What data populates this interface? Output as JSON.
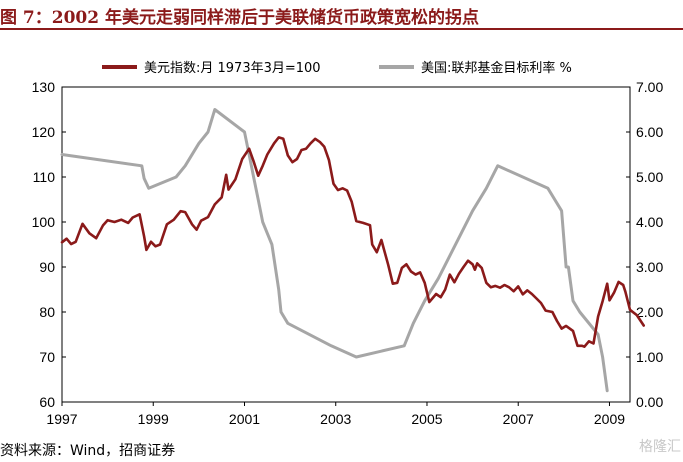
{
  "title": "图 7：2002 年美元走弱同样滞后于美联储货币政策宽松的拐点",
  "source": "资料来源：Wind，招商证券",
  "watermark": "格隆汇",
  "colors": {
    "title": "#8B1A1A",
    "series1": "#8B1A1A",
    "series2": "#A6A6A6"
  },
  "chart_data": {
    "type": "line",
    "x_axis": {
      "ticks": [
        "1997",
        "1999",
        "2001",
        "2003",
        "2005",
        "2007",
        "2009"
      ],
      "range": [
        1997,
        2009.45
      ]
    },
    "y_left": {
      "ticks": [
        "130",
        "120",
        "110",
        "100",
        "90",
        "80",
        "70",
        "60"
      ],
      "range": [
        60,
        130
      ]
    },
    "y_right": {
      "ticks": [
        "7.00",
        "6.00",
        "5.00",
        "4.00",
        "3.00",
        "2.00",
        "1.00",
        "0.00"
      ],
      "range": [
        0,
        7
      ]
    },
    "legend_position": "top",
    "series": [
      {
        "name": "美元指数:月 1973年3月=100",
        "axis": "left",
        "color": "#8B1A1A",
        "points": [
          [
            1997.0,
            95.5
          ],
          [
            1997.1,
            96.3
          ],
          [
            1997.2,
            95.1
          ],
          [
            1997.3,
            95.6
          ],
          [
            1997.45,
            99.6
          ],
          [
            1997.6,
            97.5
          ],
          [
            1997.75,
            96.4
          ],
          [
            1997.9,
            99.3
          ],
          [
            1998.0,
            100.4
          ],
          [
            1998.15,
            100.0
          ],
          [
            1998.3,
            100.5
          ],
          [
            1998.45,
            99.8
          ],
          [
            1998.55,
            101.0
          ],
          [
            1998.7,
            101.7
          ],
          [
            1998.8,
            96.8
          ],
          [
            1998.85,
            93.8
          ],
          [
            1998.95,
            95.6
          ],
          [
            1999.05,
            94.6
          ],
          [
            1999.15,
            95.0
          ],
          [
            1999.3,
            99.5
          ],
          [
            1999.45,
            100.5
          ],
          [
            1999.6,
            102.4
          ],
          [
            1999.7,
            102.2
          ],
          [
            1999.85,
            99.5
          ],
          [
            1999.95,
            98.3
          ],
          [
            2000.05,
            100.3
          ],
          [
            2000.2,
            101.1
          ],
          [
            2000.35,
            103.9
          ],
          [
            2000.5,
            105.5
          ],
          [
            2000.6,
            110.5
          ],
          [
            2000.65,
            107.2
          ],
          [
            2000.8,
            109.5
          ],
          [
            2000.95,
            114.0
          ],
          [
            2001.1,
            116.3
          ],
          [
            2001.2,
            113.5
          ],
          [
            2001.3,
            110.3
          ],
          [
            2001.4,
            112.5
          ],
          [
            2001.5,
            115.0
          ],
          [
            2001.65,
            117.5
          ],
          [
            2001.75,
            118.8
          ],
          [
            2001.85,
            118.5
          ],
          [
            2001.95,
            114.8
          ],
          [
            2002.05,
            113.3
          ],
          [
            2002.15,
            114.0
          ],
          [
            2002.25,
            116.0
          ],
          [
            2002.35,
            116.3
          ],
          [
            2002.45,
            117.5
          ],
          [
            2002.55,
            118.5
          ],
          [
            2002.65,
            117.8
          ],
          [
            2002.75,
            116.7
          ],
          [
            2002.85,
            113.8
          ],
          [
            2002.95,
            108.5
          ],
          [
            2003.05,
            107.1
          ],
          [
            2003.15,
            107.5
          ],
          [
            2003.25,
            107.0
          ],
          [
            2003.35,
            104.5
          ],
          [
            2003.45,
            100.2
          ],
          [
            2003.6,
            99.8
          ],
          [
            2003.75,
            99.3
          ],
          [
            2003.8,
            95.0
          ],
          [
            2003.9,
            93.3
          ],
          [
            2004.0,
            96.0
          ],
          [
            2004.05,
            94.2
          ],
          [
            2004.15,
            90.5
          ],
          [
            2004.25,
            86.3
          ],
          [
            2004.35,
            86.5
          ],
          [
            2004.45,
            89.8
          ],
          [
            2004.55,
            90.6
          ],
          [
            2004.65,
            89.0
          ],
          [
            2004.75,
            88.3
          ],
          [
            2004.85,
            88.8
          ],
          [
            2004.95,
            86.5
          ],
          [
            2005.05,
            82.2
          ],
          [
            2005.2,
            84.0
          ],
          [
            2005.3,
            83.3
          ],
          [
            2005.4,
            85.0
          ],
          [
            2005.5,
            88.3
          ],
          [
            2005.6,
            86.6
          ],
          [
            2005.7,
            88.5
          ],
          [
            2005.8,
            90.0
          ],
          [
            2005.9,
            91.4
          ],
          [
            2006.0,
            90.6
          ],
          [
            2006.05,
            89.4
          ],
          [
            2006.1,
            90.8
          ],
          [
            2006.2,
            89.8
          ],
          [
            2006.3,
            86.5
          ],
          [
            2006.4,
            85.5
          ],
          [
            2006.5,
            85.8
          ],
          [
            2006.6,
            85.4
          ],
          [
            2006.7,
            86.0
          ],
          [
            2006.8,
            85.5
          ],
          [
            2006.9,
            84.6
          ],
          [
            2007.0,
            85.7
          ],
          [
            2007.1,
            83.9
          ],
          [
            2007.2,
            84.8
          ],
          [
            2007.3,
            84.0
          ],
          [
            2007.4,
            83.0
          ],
          [
            2007.5,
            82.0
          ],
          [
            2007.6,
            80.3
          ],
          [
            2007.75,
            80.0
          ],
          [
            2007.85,
            78.0
          ],
          [
            2007.95,
            76.3
          ],
          [
            2008.05,
            76.9
          ],
          [
            2008.2,
            75.8
          ],
          [
            2008.3,
            72.5
          ],
          [
            2008.4,
            72.5
          ],
          [
            2008.45,
            72.3
          ],
          [
            2008.55,
            73.5
          ],
          [
            2008.65,
            73.0
          ],
          [
            2008.75,
            79.0
          ],
          [
            2008.85,
            82.4
          ],
          [
            2008.95,
            86.3
          ],
          [
            2009.0,
            82.6
          ],
          [
            2009.1,
            84.3
          ],
          [
            2009.2,
            86.7
          ],
          [
            2009.3,
            86.0
          ],
          [
            2009.35,
            84.5
          ],
          [
            2009.45,
            80.5
          ],
          [
            2009.6,
            79.3
          ],
          [
            2009.75,
            77.0
          ]
        ]
      },
      {
        "name": "美国:联邦基金目标利率 %",
        "axis": "right",
        "color": "#A6A6A6",
        "points": [
          [
            1997.0,
            5.5
          ],
          [
            1998.75,
            5.25
          ],
          [
            1998.8,
            4.97
          ],
          [
            1998.9,
            4.75
          ],
          [
            1999.5,
            5.0
          ],
          [
            1999.7,
            5.25
          ],
          [
            2000.0,
            5.75
          ],
          [
            2000.2,
            6.0
          ],
          [
            2000.35,
            6.5
          ],
          [
            2001.0,
            6.0
          ],
          [
            2001.1,
            5.5
          ],
          [
            2001.2,
            5.0
          ],
          [
            2001.3,
            4.5
          ],
          [
            2001.4,
            4.0
          ],
          [
            2001.5,
            3.75
          ],
          [
            2001.6,
            3.5
          ],
          [
            2001.75,
            2.5
          ],
          [
            2001.8,
            2.0
          ],
          [
            2001.95,
            1.75
          ],
          [
            2002.9,
            1.25
          ],
          [
            2003.45,
            1.0
          ],
          [
            2004.5,
            1.25
          ],
          [
            2004.7,
            1.75
          ],
          [
            2004.95,
            2.25
          ],
          [
            2005.25,
            2.75
          ],
          [
            2005.5,
            3.25
          ],
          [
            2005.75,
            3.75
          ],
          [
            2006.0,
            4.25
          ],
          [
            2006.3,
            4.75
          ],
          [
            2006.55,
            5.25
          ],
          [
            2007.65,
            4.75
          ],
          [
            2007.8,
            4.5
          ],
          [
            2007.95,
            4.25
          ],
          [
            2008.05,
            3.0
          ],
          [
            2008.1,
            3.0
          ],
          [
            2008.2,
            2.25
          ],
          [
            2008.35,
            2.0
          ],
          [
            2008.75,
            1.5
          ],
          [
            2008.85,
            1.0
          ],
          [
            2008.95,
            0.25
          ]
        ]
      }
    ]
  }
}
